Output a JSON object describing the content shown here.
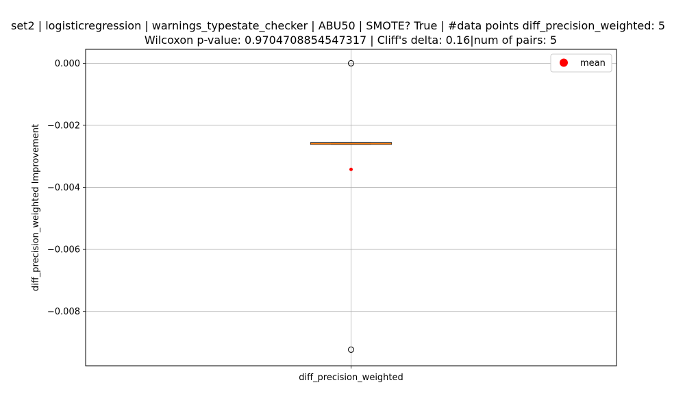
{
  "chart_data": {
    "type": "box",
    "title_line1": "set2 | logisticregression | warnings_typestate_checker | ABU50 | SMOTE? True | #data points diff_precision_weighted: 5",
    "title_line2": "Wilcoxon p-value: 0.9704708854547317 | Cliff's delta: 0.16|num of pairs: 5",
    "xlabel": "",
    "ylabel": "diff_precision_weighted Improvement",
    "categories": [
      "diff_precision_weighted"
    ],
    "ylim": [
      -0.00975,
      0.00045
    ],
    "yticks": [
      0.0,
      -0.002,
      -0.004,
      -0.006,
      -0.008
    ],
    "ytick_labels": [
      "0.000",
      "−0.002",
      "−0.004",
      "−0.006",
      "−0.008"
    ],
    "grid": true,
    "legend": {
      "placement": "top-right",
      "entries": [
        {
          "label": "mean",
          "color": "#ff0000"
        }
      ]
    },
    "box": {
      "q1": -0.00261,
      "median": -0.00259,
      "q3": -0.00256,
      "whisker_low": -0.00261,
      "whisker_high": -0.00256,
      "mean": -0.00342,
      "outliers": [
        0.0,
        -0.00923
      ]
    },
    "colors": {
      "box_face": "#ffffff",
      "median": "#ff7f0e",
      "mean": "#ff0000",
      "grid": "#b0b0b0"
    }
  }
}
